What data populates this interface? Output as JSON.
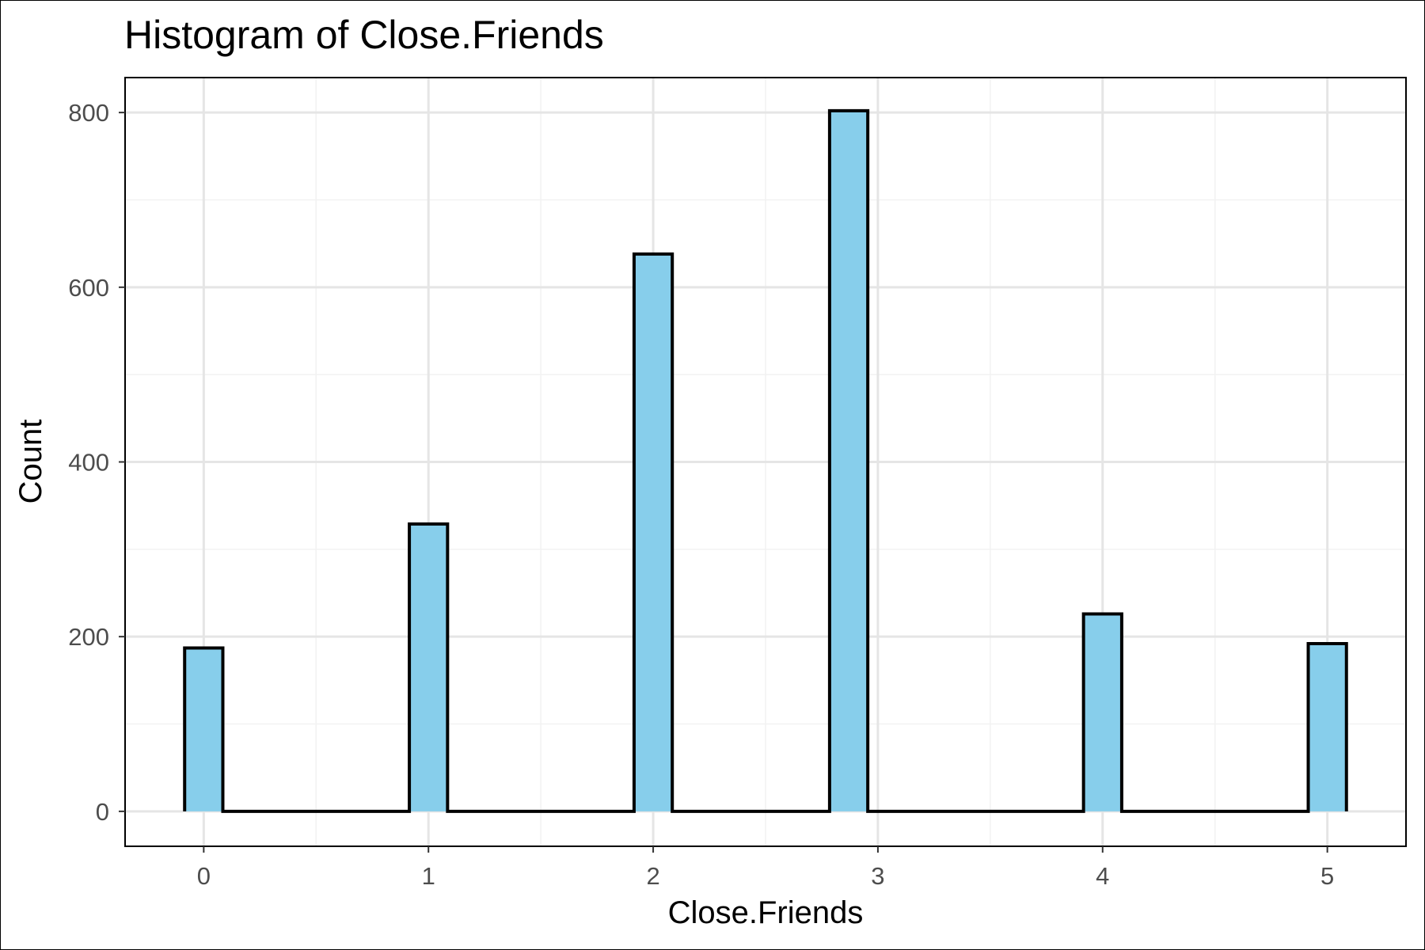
{
  "chart_data": {
    "type": "bar",
    "title": "Histogram of Close.Friends",
    "xlabel": "Close.Friends",
    "ylabel": "Count",
    "x_ticks": [
      "0",
      "1",
      "2",
      "3",
      "4",
      "5"
    ],
    "y_ticks": [
      "0",
      "200",
      "400",
      "600",
      "800"
    ],
    "xlim": [
      -0.35,
      5.35
    ],
    "ylim": [
      -40,
      840
    ],
    "grid": true,
    "bins": [
      {
        "x": 0,
        "count": 187
      },
      {
        "x": 1,
        "count": 329
      },
      {
        "x": 2,
        "count": 638
      },
      {
        "x": 2.87,
        "count": 802
      },
      {
        "x": 4,
        "count": 226
      },
      {
        "x": 5,
        "count": 192
      }
    ],
    "colors": {
      "fill": "#87CEEB",
      "stroke": "#000000",
      "grid_major": "#e5e5e5",
      "grid_minor": "#f2f2f2"
    }
  }
}
